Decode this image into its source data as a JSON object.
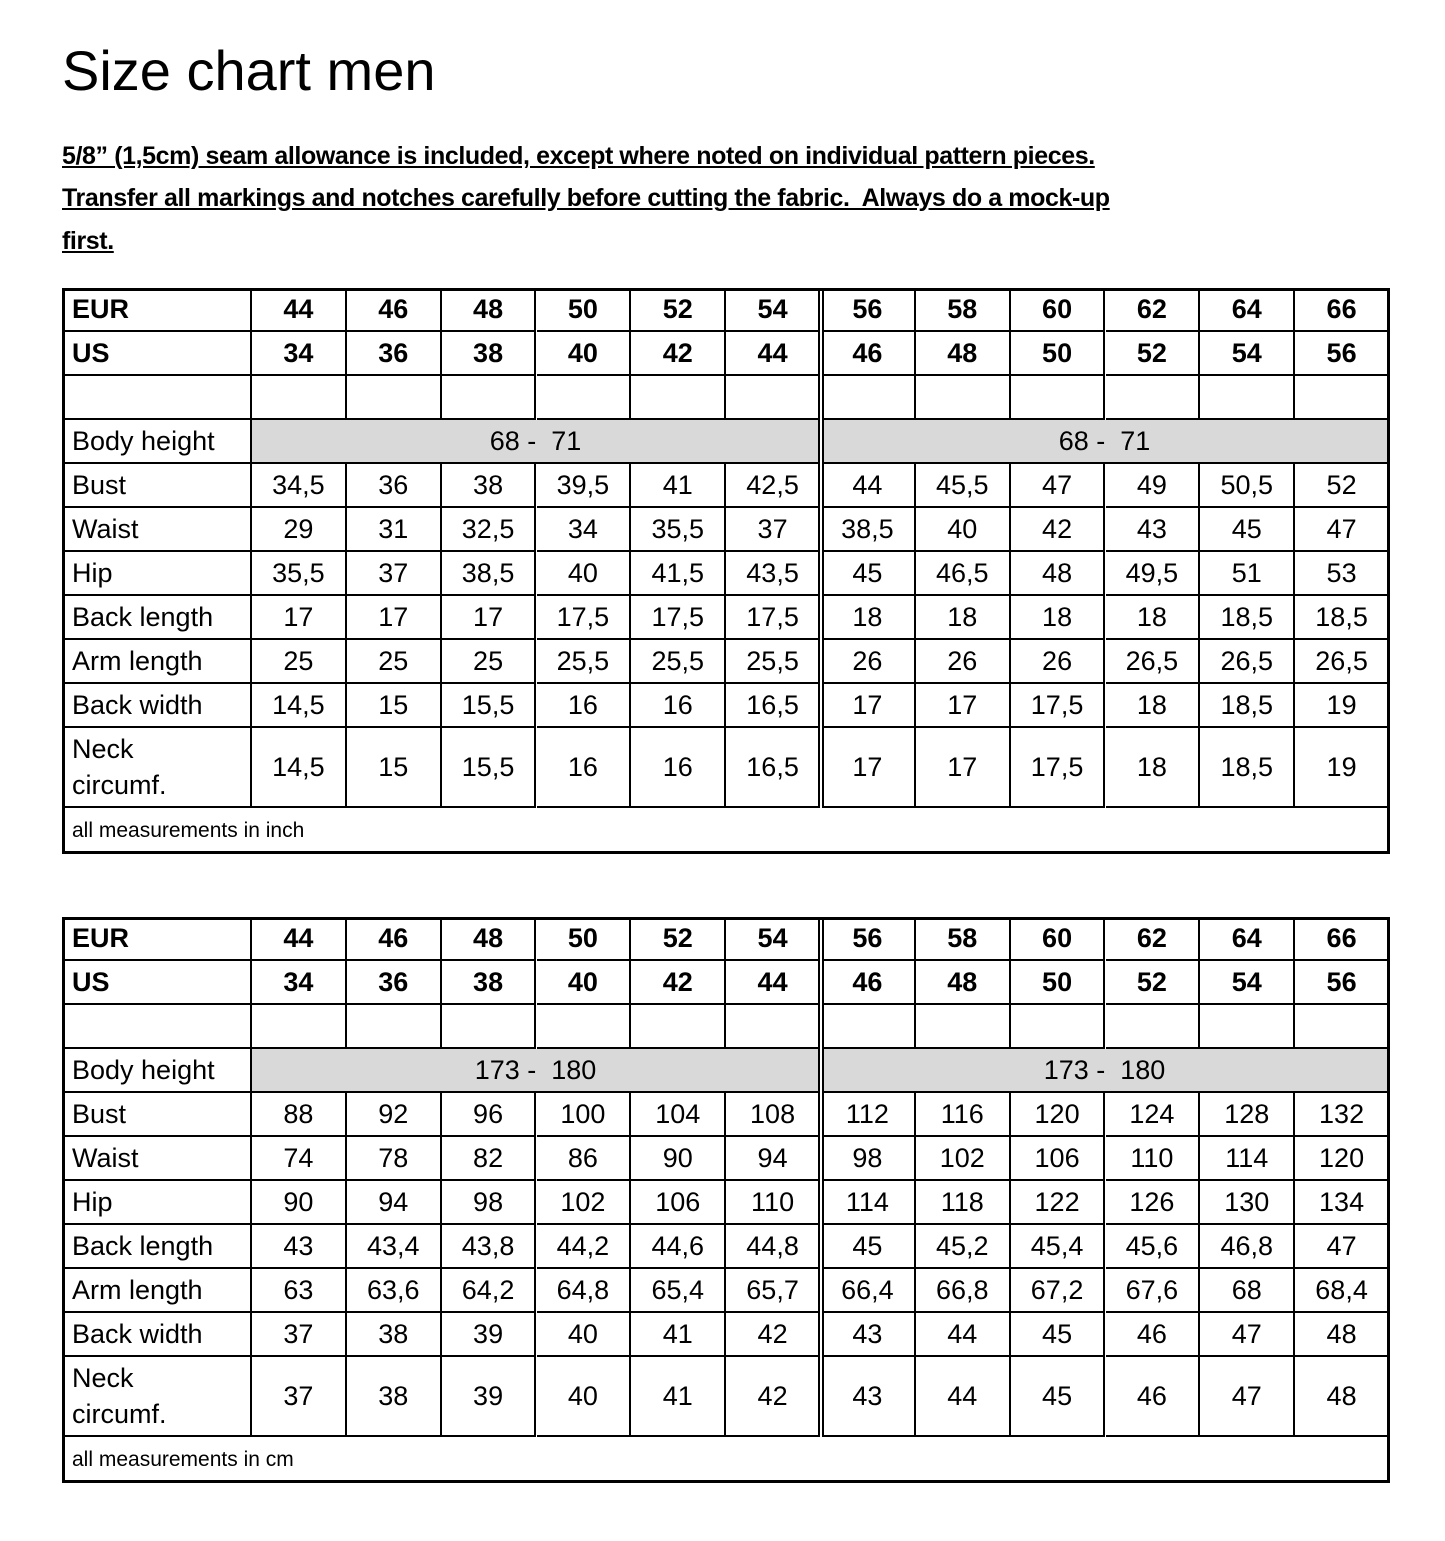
{
  "title": "Size chart men",
  "notes": [
    "5/8” (1,5cm) seam allowance is included, except where noted on individual pattern pieces.",
    "Transfer all markings and notches carefully before cutting the fabric.  Always do a mock-up",
    "first."
  ],
  "tables": [
    {
      "header_rows": [
        {
          "label": "EUR",
          "values": [
            "44",
            "46",
            "48",
            "50",
            "52",
            "54",
            "56",
            "58",
            "60",
            "62",
            "64",
            "66"
          ]
        },
        {
          "label": "US",
          "values": [
            "34",
            "36",
            "38",
            "40",
            "42",
            "44",
            "46",
            "48",
            "50",
            "52",
            "54",
            "56"
          ]
        }
      ],
      "body_height": {
        "label": "Body height",
        "values": [
          "68 -  71",
          "68 -  71"
        ]
      },
      "rows": [
        {
          "label": "Bust",
          "values": [
            "34,5",
            "36",
            "38",
            "39,5",
            "41",
            "42,5",
            "44",
            "45,5",
            "47",
            "49",
            "50,5",
            "52"
          ]
        },
        {
          "label": "Waist",
          "values": [
            "29",
            "31",
            "32,5",
            "34",
            "35,5",
            "37",
            "38,5",
            "40",
            "42",
            "43",
            "45",
            "47"
          ]
        },
        {
          "label": "Hip",
          "values": [
            "35,5",
            "37",
            "38,5",
            "40",
            "41,5",
            "43,5",
            "45",
            "46,5",
            "48",
            "49,5",
            "51",
            "53"
          ]
        },
        {
          "label": "Back length",
          "values": [
            "17",
            "17",
            "17",
            "17,5",
            "17,5",
            "17,5",
            "18",
            "18",
            "18",
            "18",
            "18,5",
            "18,5"
          ]
        },
        {
          "label": "Arm length",
          "values": [
            "25",
            "25",
            "25",
            "25,5",
            "25,5",
            "25,5",
            "26",
            "26",
            "26",
            "26,5",
            "26,5",
            "26,5"
          ]
        },
        {
          "label": "Back width",
          "values": [
            "14,5",
            "15",
            "15,5",
            "16",
            "16",
            "16,5",
            "17",
            "17",
            "17,5",
            "18",
            "18,5",
            "19"
          ]
        },
        {
          "label": "Neck circumf.",
          "values": [
            "14,5",
            "15",
            "15,5",
            "16",
            "16",
            "16,5",
            "17",
            "17",
            "17,5",
            "18",
            "18,5",
            "19"
          ]
        }
      ],
      "note": "all measurements in inch"
    },
    {
      "header_rows": [
        {
          "label": "EUR",
          "values": [
            "44",
            "46",
            "48",
            "50",
            "52",
            "54",
            "56",
            "58",
            "60",
            "62",
            "64",
            "66"
          ]
        },
        {
          "label": "US",
          "values": [
            "34",
            "36",
            "38",
            "40",
            "42",
            "44",
            "46",
            "48",
            "50",
            "52",
            "54",
            "56"
          ]
        }
      ],
      "body_height": {
        "label": "Body height",
        "values": [
          "173 -  180",
          "173 -  180"
        ]
      },
      "rows": [
        {
          "label": "Bust",
          "values": [
            "88",
            "92",
            "96",
            "100",
            "104",
            "108",
            "112",
            "116",
            "120",
            "124",
            "128",
            "132"
          ]
        },
        {
          "label": "Waist",
          "values": [
            "74",
            "78",
            "82",
            "86",
            "90",
            "94",
            "98",
            "102",
            "106",
            "110",
            "114",
            "120"
          ]
        },
        {
          "label": "Hip",
          "values": [
            "90",
            "94",
            "98",
            "102",
            "106",
            "110",
            "114",
            "118",
            "122",
            "126",
            "130",
            "134"
          ]
        },
        {
          "label": "Back length",
          "values": [
            "43",
            "43,4",
            "43,8",
            "44,2",
            "44,6",
            "44,8",
            "45",
            "45,2",
            "45,4",
            "45,6",
            "46,8",
            "47"
          ]
        },
        {
          "label": "Arm length",
          "values": [
            "63",
            "63,6",
            "64,2",
            "64,8",
            "65,4",
            "65,7",
            "66,4",
            "66,8",
            "67,2",
            "67,6",
            "68",
            "68,4"
          ]
        },
        {
          "label": "Back width",
          "values": [
            "37",
            "38",
            "39",
            "40",
            "41",
            "42",
            "43",
            "44",
            "45",
            "46",
            "47",
            "48"
          ]
        },
        {
          "label": "Neck circumf.",
          "values": [
            "37",
            "38",
            "39",
            "40",
            "41",
            "42",
            "43",
            "44",
            "45",
            "46",
            "47",
            "48"
          ]
        }
      ],
      "note": "all measurements in cm"
    }
  ]
}
